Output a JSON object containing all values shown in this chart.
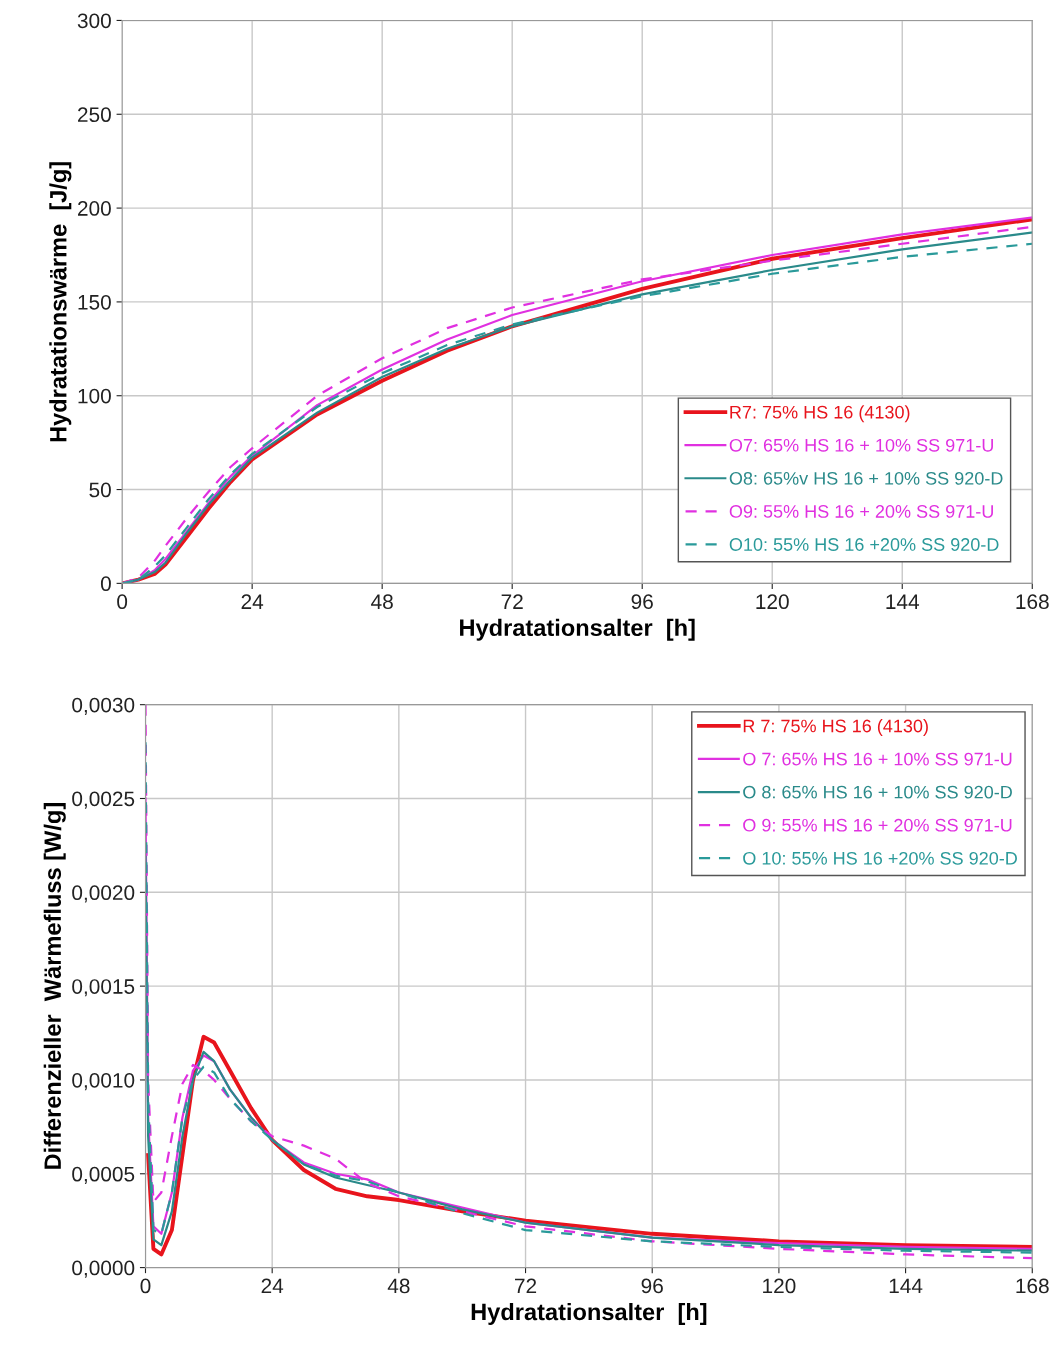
{
  "chart_data": [
    {
      "type": "line",
      "xlabel": "Hydratationsalter  [h]",
      "ylabel": "Hydratationswärme  [J/g]",
      "xlim": [
        0,
        168
      ],
      "xticks": [
        0,
        24,
        48,
        72,
        96,
        120,
        144,
        168
      ],
      "ylim": [
        0,
        300
      ],
      "yticks": [
        0,
        50,
        100,
        150,
        200,
        250,
        300
      ],
      "grid": true,
      "legend": "lower right",
      "marker": "none",
      "series": [
        {
          "name": "R7: 75% HS 16 (4130)",
          "color": "#e8141c",
          "line_style": "solid",
          "x": [
            0,
            3,
            6,
            8,
            12,
            16,
            20,
            24,
            36,
            48,
            60,
            72,
            96,
            120,
            144,
            168
          ],
          "values": [
            0,
            2,
            5,
            10,
            25,
            40,
            54,
            66,
            90,
            108,
            124,
            137,
            157,
            173,
            184,
            194
          ]
        },
        {
          "name": "O7: 65% HS 16 + 10% SS 971-U",
          "color": "#e030e0",
          "line_style": "solid",
          "x": [
            0,
            3,
            6,
            8,
            12,
            16,
            20,
            24,
            36,
            48,
            60,
            72,
            96,
            120,
            144,
            168
          ],
          "values": [
            0,
            2,
            7,
            13,
            28,
            43,
            57,
            68,
            95,
            114,
            130,
            143,
            161,
            175,
            186,
            195
          ]
        },
        {
          "name": "O8: 65%v HS 16 + 10% SS 920-D",
          "color": "#2a8a8a",
          "line_style": "solid",
          "x": [
            0,
            3,
            6,
            8,
            12,
            16,
            20,
            24,
            36,
            48,
            60,
            72,
            96,
            120,
            144,
            168
          ],
          "values": [
            0,
            2,
            6,
            11,
            27,
            42,
            55,
            67,
            91,
            110,
            125,
            137,
            154,
            167,
            178,
            187
          ]
        },
        {
          "name": "O9: 55% HS 16 + 20% SS 971-U",
          "color": "#e030e0",
          "line_style": "dashed",
          "x": [
            0,
            3,
            6,
            8,
            12,
            16,
            20,
            24,
            36,
            48,
            60,
            72,
            96,
            120,
            144,
            168
          ],
          "values": [
            0,
            3,
            12,
            20,
            35,
            49,
            62,
            72,
            100,
            120,
            136,
            147,
            162,
            172,
            181,
            190
          ]
        },
        {
          "name": "O10: 55% HS 16 +20% SS 920-D",
          "color": "#2a9a9a",
          "line_style": "dashed",
          "x": [
            0,
            3,
            6,
            8,
            12,
            16,
            20,
            24,
            36,
            48,
            60,
            72,
            96,
            120,
            144,
            168
          ],
          "values": [
            0,
            2,
            9,
            15,
            30,
            45,
            58,
            69,
            94,
            112,
            127,
            138,
            153,
            165,
            174,
            181
          ]
        }
      ]
    },
    {
      "type": "line",
      "xlabel": "Hydratationsalter  [h]",
      "ylabel": "Differenzieller  Wärmefluss [W/g]",
      "xlim": [
        0,
        168
      ],
      "xticks": [
        0,
        24,
        48,
        72,
        96,
        120,
        144,
        168
      ],
      "ylim": [
        0,
        0.003
      ],
      "yticks": [
        {
          "value": 0,
          "label": "0,0000"
        },
        {
          "value": 0.0005,
          "label": "0,0005"
        },
        {
          "value": 0.001,
          "label": "0,0010"
        },
        {
          "value": 0.0015,
          "label": "0,0015"
        },
        {
          "value": 0.002,
          "label": "0,0020"
        },
        {
          "value": 0.0025,
          "label": "0,0025"
        },
        {
          "value": 0.003,
          "label": "0,0030"
        }
      ],
      "grid": true,
      "legend": "upper right",
      "marker": "none",
      "series": [
        {
          "name": "R 7: 75% HS 16 (4130)",
          "color": "#e8141c",
          "line_style": "solid",
          "x": [
            0.5,
            1.5,
            3,
            5,
            7,
            9,
            11,
            13,
            16,
            20,
            24,
            30,
            36,
            42,
            48,
            60,
            72,
            96,
            120,
            144,
            168
          ],
          "values": [
            0.0006,
            0.0001,
            7e-05,
            0.0002,
            0.0006,
            0.001,
            0.00123,
            0.0012,
            0.00105,
            0.00085,
            0.00068,
            0.00052,
            0.00042,
            0.00038,
            0.00036,
            0.0003,
            0.00025,
            0.00018,
            0.00014,
            0.00012,
            0.00011
          ]
        },
        {
          "name": "O 7: 65% HS 16 + 10% SS 971-U",
          "color": "#e030e0",
          "line_style": "solid",
          "x": [
            0,
            0.5,
            1.5,
            3,
            5,
            7,
            9,
            11,
            13,
            16,
            20,
            24,
            30,
            36,
            42,
            48,
            60,
            72,
            96,
            120,
            144,
            168
          ],
          "values": [
            0.0025,
            0.0008,
            0.00022,
            0.00018,
            0.0004,
            0.0008,
            0.00105,
            0.00113,
            0.0011,
            0.00095,
            0.0008,
            0.00068,
            0.00056,
            0.0005,
            0.00047,
            0.0004,
            0.00032,
            0.00024,
            0.00016,
            0.00013,
            0.00011,
            0.0001
          ]
        },
        {
          "name": "O 8: 65% HS 16 + 10% SS 920-D",
          "color": "#2a8a8a",
          "line_style": "solid",
          "x": [
            0,
            0.5,
            1.5,
            3,
            5,
            7,
            9,
            11,
            13,
            16,
            20,
            24,
            30,
            36,
            42,
            48,
            60,
            72,
            96,
            120,
            144,
            168
          ],
          "values": [
            0.0022,
            0.0007,
            0.00015,
            0.00012,
            0.0003,
            0.0007,
            0.001,
            0.00115,
            0.0011,
            0.00095,
            0.0008,
            0.00068,
            0.00055,
            0.00048,
            0.00044,
            0.0004,
            0.00031,
            0.00024,
            0.00016,
            0.00012,
            0.0001,
            9e-05
          ]
        },
        {
          "name": "O 9: 55% HS 16 + 20% SS 971-U",
          "color": "#e030e0",
          "line_style": "dashed",
          "x": [
            0,
            0.5,
            1.5,
            3,
            5,
            7,
            9,
            11,
            13,
            16,
            20,
            24,
            30,
            36,
            42,
            48,
            60,
            72,
            96,
            120,
            144,
            168
          ],
          "values": [
            0.003,
            0.001,
            0.00035,
            0.0004,
            0.0007,
            0.00098,
            0.00108,
            0.00105,
            0.001,
            0.0009,
            0.00078,
            0.0007,
            0.00065,
            0.00058,
            0.00045,
            0.00038,
            0.0003,
            0.00022,
            0.00014,
            0.0001,
            7e-05,
            5e-05
          ]
        },
        {
          "name": "O 10: 55% HS 16 +20% SS 920-D",
          "color": "#2a9a9a",
          "line_style": "dashed",
          "x": [
            0,
            0.5,
            1.5,
            3,
            5,
            7,
            9,
            11,
            13,
            16,
            20,
            24,
            30,
            36,
            42,
            48,
            60,
            72,
            96,
            120,
            144,
            168
          ],
          "values": [
            0.0028,
            0.0009,
            0.0002,
            0.00018,
            0.0004,
            0.0008,
            0.001,
            0.00107,
            0.00104,
            0.0009,
            0.00078,
            0.00068,
            0.00055,
            0.00049,
            0.00046,
            0.0004,
            0.00029,
            0.0002,
            0.00014,
            0.00011,
            9e-05,
            8e-05
          ]
        }
      ]
    }
  ]
}
